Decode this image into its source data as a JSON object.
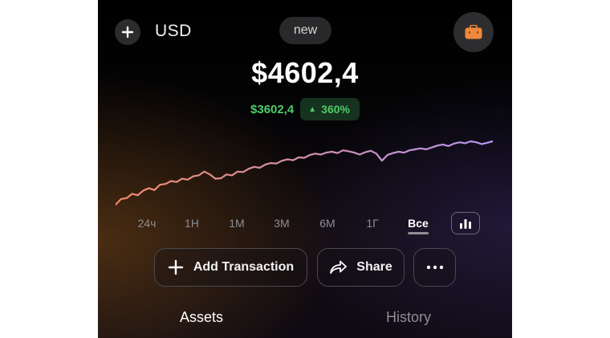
{
  "header": {
    "add_icon": "plus-icon",
    "currency": "USD",
    "badge": "new",
    "wallet_icon": "briefcase-icon"
  },
  "balance": {
    "total": "$4602,4",
    "change_abs": "$3602,4",
    "change_arrow": "▲",
    "change_pct": "360%"
  },
  "chart_data": {
    "type": "line",
    "title": "",
    "xlabel": "",
    "ylabel": "",
    "grid": false,
    "series": [
      {
        "values": [
          1000,
          1120,
          1140,
          1230,
          1200,
          1300,
          1350,
          1310,
          1420,
          1440,
          1500,
          1480,
          1550,
          1530,
          1600,
          1620,
          1700,
          1640,
          1550,
          1560,
          1640,
          1620,
          1700,
          1690,
          1760,
          1800,
          1780,
          1850,
          1880,
          1870,
          1930,
          1960,
          1940,
          2000,
          1990,
          2050,
          2080,
          2060,
          2100,
          2120,
          2090,
          2150,
          2130,
          2100,
          2060,
          2110,
          2140,
          2080,
          1930,
          2050,
          2090,
          2120,
          2100,
          2150,
          2170,
          2190,
          2170,
          2210,
          2250,
          2270,
          2240,
          2290,
          2320,
          2300,
          2340,
          2320,
          2280,
          2310,
          2340
        ],
        "color_start": "#f08a6a",
        "color_end": "#b596f0"
      }
    ]
  },
  "ranges": [
    "24ч",
    "1Н",
    "1М",
    "3М",
    "6М",
    "1Г",
    "Все"
  ],
  "active_range": "Все",
  "chart_toggle_icon": "bar-chart-icon",
  "actions": {
    "add_transaction": "Add Transaction",
    "share": "Share",
    "more_icon": "more-icon"
  },
  "tabs": {
    "assets": "Assets",
    "history": "History",
    "active": "Assets"
  },
  "colors": {
    "positive": "#4ecb6a",
    "wallet_accent": "#f0873a"
  }
}
